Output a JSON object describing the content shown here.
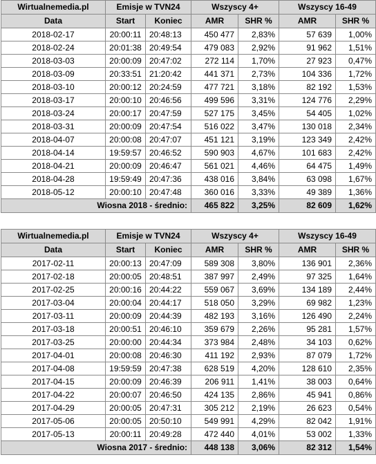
{
  "header": {
    "source": "Wirtualnemedia.pl",
    "emissions": "Emisje w TVN24",
    "group1": "Wszyscy 4+",
    "group2": "Wszyscy 16-49",
    "date": "Data",
    "start": "Start",
    "end": "Koniec",
    "amr": "AMR",
    "shr": "SHR %"
  },
  "season2018": {
    "rows": [
      [
        "2018-02-17",
        "20:00:11",
        "20:48:13",
        "450 477",
        "2,83%",
        "57 639",
        "1,00%"
      ],
      [
        "2018-02-24",
        "20:01:38",
        "20:49:54",
        "479 083",
        "2,92%",
        "91 962",
        "1,51%"
      ],
      [
        "2018-03-03",
        "20:00:09",
        "20:47:02",
        "272 114",
        "1,70%",
        "27 923",
        "0,47%"
      ],
      [
        "2018-03-09",
        "20:33:51",
        "21:20:42",
        "441 371",
        "2,73%",
        "104 336",
        "1,72%"
      ],
      [
        "2018-03-10",
        "20:00:12",
        "20:24:59",
        "477 721",
        "3,18%",
        "82 192",
        "1,53%"
      ],
      [
        "2018-03-17",
        "20:00:10",
        "20:46:56",
        "499 596",
        "3,31%",
        "124 776",
        "2,29%"
      ],
      [
        "2018-03-24",
        "20:00:17",
        "20:47:59",
        "527 175",
        "3,45%",
        "54 405",
        "1,02%"
      ],
      [
        "2018-03-31",
        "20:00:09",
        "20:47:54",
        "516 022",
        "3,47%",
        "130 018",
        "2,34%"
      ],
      [
        "2018-04-07",
        "20:00:08",
        "20:47:07",
        "451 121",
        "3,19%",
        "123 349",
        "2,42%"
      ],
      [
        "2018-04-14",
        "19:59:57",
        "20:46:52",
        "590 903",
        "4,67%",
        "101 683",
        "2,42%"
      ],
      [
        "2018-04-21",
        "20:00:09",
        "20:46:47",
        "561 021",
        "4,46%",
        "64 475",
        "1,49%"
      ],
      [
        "2018-04-28",
        "19:59:49",
        "20:47:36",
        "438 016",
        "3,84%",
        "63 098",
        "1,67%"
      ],
      [
        "2018-05-12",
        "20:00:10",
        "20:47:48",
        "360 016",
        "3,33%",
        "49 389",
        "1,36%"
      ]
    ],
    "avg_label": "Wiosna 2018 - średnio:",
    "avg": [
      "465 822",
      "3,25%",
      "82 609",
      "1,62%"
    ]
  },
  "season2017": {
    "rows": [
      [
        "2017-02-11",
        "20:00:13",
        "20:47:09",
        "589 308",
        "3,80%",
        "136 901",
        "2,36%"
      ],
      [
        "2017-02-18",
        "20:00:05",
        "20:48:51",
        "387 997",
        "2,49%",
        "97 325",
        "1,64%"
      ],
      [
        "2017-02-25",
        "20:00:16",
        "20:44:22",
        "559 067",
        "3,69%",
        "134 189",
        "2,44%"
      ],
      [
        "2017-03-04",
        "20:00:04",
        "20:44:17",
        "518 050",
        "3,29%",
        "69 982",
        "1,23%"
      ],
      [
        "2017-03-11",
        "20:00:09",
        "20:44:39",
        "482 193",
        "3,16%",
        "126 490",
        "2,24%"
      ],
      [
        "2017-03-18",
        "20:00:51",
        "20:46:10",
        "359 679",
        "2,26%",
        "95 281",
        "1,57%"
      ],
      [
        "2017-03-25",
        "20:00:00",
        "20:44:34",
        "373 984",
        "2,48%",
        "34 103",
        "0,62%"
      ],
      [
        "2017-04-01",
        "20:00:08",
        "20:46:30",
        "411 192",
        "2,93%",
        "87 079",
        "1,72%"
      ],
      [
        "2017-04-08",
        "19:59:59",
        "20:47:38",
        "628 519",
        "4,20%",
        "128 610",
        "2,35%"
      ],
      [
        "2017-04-15",
        "20:00:09",
        "20:46:39",
        "206 911",
        "1,41%",
        "38 003",
        "0,64%"
      ],
      [
        "2017-04-22",
        "20:00:07",
        "20:46:50",
        "424 135",
        "2,86%",
        "45 941",
        "0,86%"
      ],
      [
        "2017-04-29",
        "20:00:05",
        "20:47:31",
        "305 212",
        "2,19%",
        "26 623",
        "0,54%"
      ],
      [
        "2017-05-06",
        "20:00:05",
        "20:50:10",
        "549 991",
        "4,29%",
        "82 042",
        "1,91%"
      ],
      [
        "2017-05-13",
        "20:00:11",
        "20:49:28",
        "472 440",
        "4,01%",
        "53 002",
        "1,33%"
      ]
    ],
    "avg_label": "Wiosna 2017 - średnio:",
    "avg": [
      "448 138",
      "3,06%",
      "82 312",
      "1,54%"
    ]
  }
}
